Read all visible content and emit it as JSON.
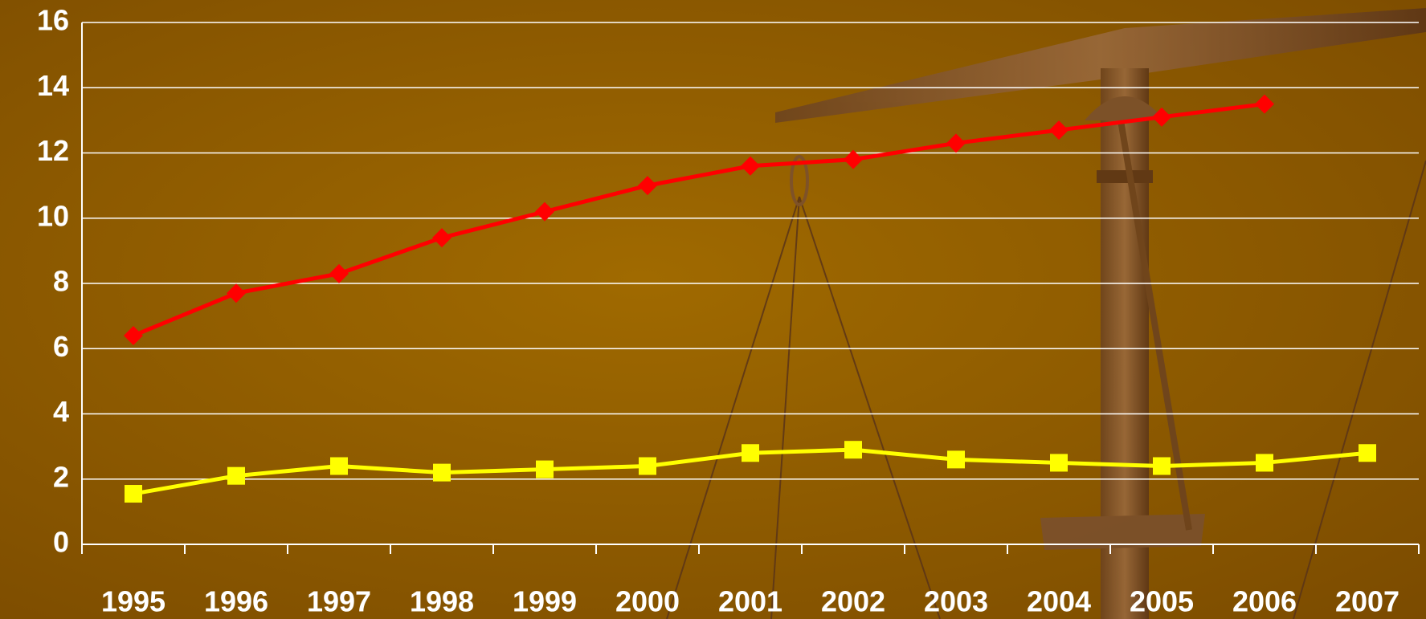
{
  "chart_data": {
    "type": "line",
    "categories": [
      "1995",
      "1996",
      "1997",
      "1998",
      "1999",
      "2000",
      "2001",
      "2002",
      "2003",
      "2004",
      "2005",
      "2006",
      "2007"
    ],
    "series": [
      {
        "color": "#ff0000",
        "marker": "diamond",
        "values": [
          6.4,
          7.7,
          8.3,
          9.4,
          10.2,
          11.0,
          11.6,
          11.8,
          12.3,
          12.7,
          13.1,
          13.5,
          null
        ]
      },
      {
        "color": "#ffff00",
        "marker": "square",
        "values": [
          1.55,
          2.1,
          2.4,
          2.2,
          2.3,
          2.4,
          2.8,
          2.9,
          2.6,
          2.5,
          2.4,
          2.5,
          2.8
        ]
      }
    ],
    "ylim": [
      0,
      16
    ],
    "yticks": [
      0,
      2,
      4,
      6,
      8,
      10,
      12,
      14,
      16
    ],
    "grid": true
  }
}
